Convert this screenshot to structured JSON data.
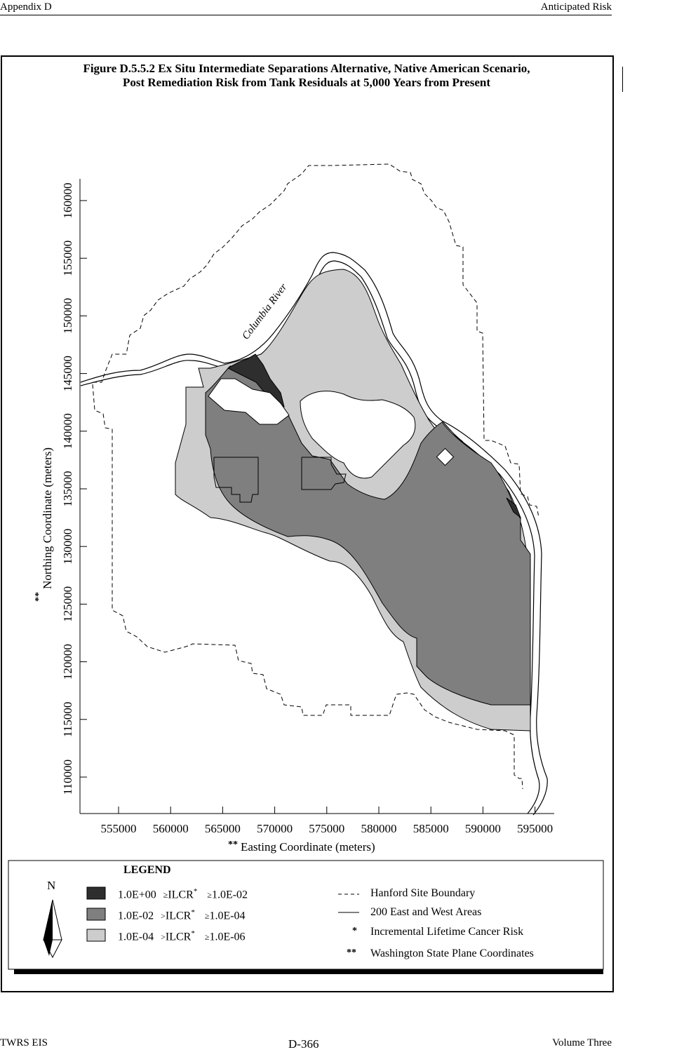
{
  "header": {
    "left": "Appendix D",
    "right": "Anticipated Risk"
  },
  "footer": {
    "left": "TWRS EIS",
    "center": "D-366",
    "right": "Volume Three"
  },
  "figure": {
    "title_line1": "Figure D.5.5.2  Ex Situ Intermediate Separations Alternative, Native American Scenario,",
    "title_line2": "Post Remediation Risk from Tank Residuals at 5,000 Years from Present"
  },
  "map": {
    "river_label": "Columbia River",
    "north_symbol": "N",
    "x_axis": {
      "label": "Easting Coordinate (meters)",
      "label_prefix": "**",
      "ticks": [
        "555000",
        "560000",
        "565000",
        "570000",
        "575000",
        "580000",
        "585000",
        "590000",
        "595000"
      ]
    },
    "y_axis": {
      "label": "Northing Coordinate (meters)",
      "label_prefix": "**",
      "ticks": [
        "110000",
        "115000",
        "120000",
        "125000",
        "130000",
        "135000",
        "140000",
        "145000",
        "150000",
        "155000",
        "160000"
      ]
    },
    "colors": {
      "dark": "#2e2e2e",
      "medium": "#7f7f7f",
      "light": "#cdcdcd"
    }
  },
  "legend": {
    "title": "LEGEND",
    "risk_classes": [
      {
        "upper": "1.0E+00",
        "op1": "≥",
        "label": "ILCR",
        "star": "*",
        "op2": "≥",
        "lower": "1.0E-02",
        "color": "dark"
      },
      {
        "upper": "1.0E-02",
        "op1": ">",
        "label": "ILCR",
        "star": "*",
        "op2": "≥",
        "lower": "1.0E-04",
        "color": "medium"
      },
      {
        "upper": "1.0E-04",
        "op1": ">",
        "label": "ILCR",
        "star": "*",
        "op2": "≥",
        "lower": "1.0E-06",
        "color": "light"
      }
    ],
    "symbols": [
      {
        "symbol": "- - -",
        "text": "Hanford Site Boundary"
      },
      {
        "symbol": "——",
        "text": "200 East and West Areas"
      },
      {
        "symbol": "*",
        "text": "Incremental Lifetime Cancer Risk"
      },
      {
        "symbol": "**",
        "text": "Washington State Plane Coordinates"
      }
    ]
  }
}
